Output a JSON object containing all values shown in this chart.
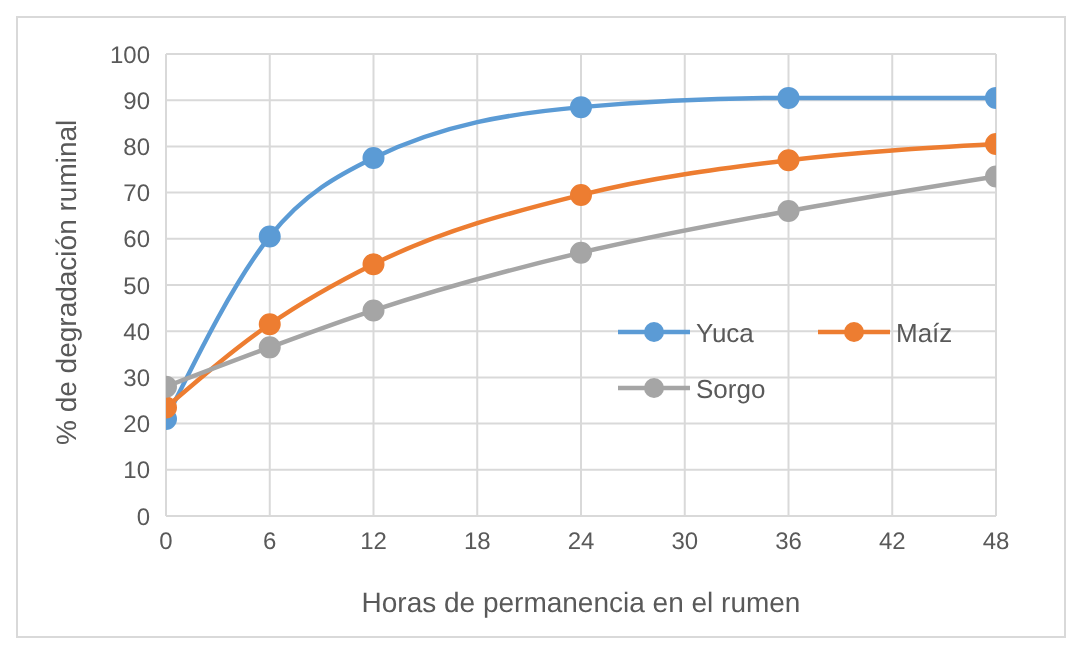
{
  "chart_data": {
    "type": "line",
    "xlabel": "Horas de permanencia en el rumen",
    "ylabel": "% de degradación ruminal",
    "x": [
      0,
      6,
      12,
      24,
      36,
      48
    ],
    "series": [
      {
        "name": "Yuca",
        "color": "#5b9bd5",
        "values": [
          21,
          60.5,
          77.5,
          88.5,
          90.5,
          90.5
        ]
      },
      {
        "name": "Maíz",
        "color": "#ed7d31",
        "values": [
          23.5,
          41.5,
          54.5,
          69.5,
          77,
          80.5
        ]
      },
      {
        "name": "Sorgo",
        "color": "#a5a5a5",
        "values": [
          28,
          36.5,
          44.5,
          57,
          66,
          73.5
        ]
      }
    ],
    "xlim": [
      0,
      48
    ],
    "xticks": [
      0,
      6,
      12,
      18,
      24,
      30,
      36,
      42,
      48
    ],
    "ylim": [
      0,
      100
    ],
    "yticks": [
      0,
      10,
      20,
      30,
      40,
      50,
      60,
      70,
      80,
      90,
      100
    ],
    "grid": true,
    "legend": "right",
    "marker": "circle",
    "line_style": "solid"
  }
}
